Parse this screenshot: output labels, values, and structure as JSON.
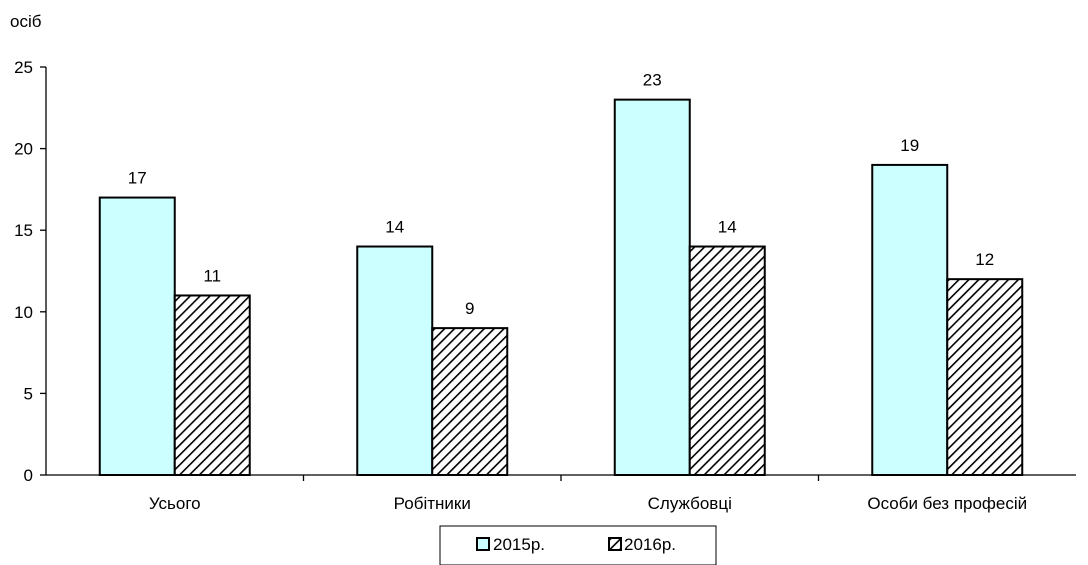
{
  "chart_data": {
    "type": "bar",
    "ylabel": "осіб",
    "ylim": [
      0,
      25
    ],
    "yticks": [
      0,
      5,
      10,
      15,
      20,
      25
    ],
    "categories": [
      "Усього",
      "Робітники",
      "Службовці",
      "Особи без професій"
    ],
    "series": [
      {
        "name": "2015р.",
        "values": [
          17,
          14,
          23,
          19
        ],
        "color": "#ccffff",
        "pattern": "solid"
      },
      {
        "name": "2016р.",
        "values": [
          11,
          9,
          14,
          12
        ],
        "color": "#000000",
        "pattern": "diagonal-hatch"
      }
    ],
    "data_labels": true,
    "grid": false,
    "legend_position": "bottom"
  }
}
